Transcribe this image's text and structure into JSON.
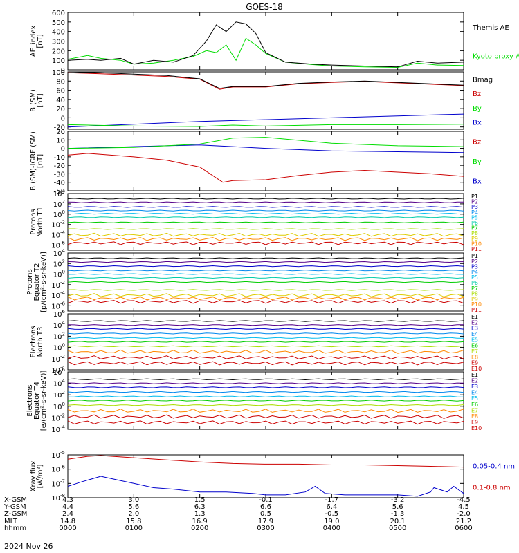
{
  "title": "GOES-18",
  "date_label": "2024 Nov 26",
  "footer": {
    "rows": [
      {
        "label": "X-GSM",
        "values": [
          "4.3",
          "3.0",
          "1.5",
          "-0.1",
          "-1.7",
          "-3.2",
          "-4.5"
        ]
      },
      {
        "label": "Y-GSM",
        "values": [
          "4.4",
          "5.6",
          "6.3",
          "6.6",
          "6.4",
          "5.6",
          "4.5"
        ]
      },
      {
        "label": "Z-GSM",
        "values": [
          "2.4",
          "2.0",
          "1.3",
          "0.5",
          "-0.5",
          "-1.3",
          "-2.0"
        ]
      },
      {
        "label": "MLT",
        "values": [
          "14.8",
          "15.8",
          "16.9",
          "17.9",
          "19.0",
          "20.1",
          "21.2"
        ]
      },
      {
        "label": "hhmm",
        "values": [
          "0000",
          "0100",
          "0200",
          "0300",
          "0400",
          "0500",
          "0600"
        ]
      }
    ]
  },
  "colors": {
    "black": "#000000",
    "green": "#00dd00",
    "blue": "#0000cc",
    "red": "#cc0000"
  },
  "chart_data": [
    {
      "type": "line",
      "ylabel": [
        "AE_index",
        "[nT]"
      ],
      "ylim": [
        0,
        600
      ],
      "yticks": [
        "0",
        "100",
        "200",
        "300",
        "400",
        "500",
        "600"
      ],
      "x_hours": [
        0,
        6
      ],
      "series": [
        {
          "name": "Kyoto proxy AE",
          "color": "#00dd00",
          "x": [
            0.0,
            0.3,
            0.5,
            0.8,
            1.0,
            1.3,
            1.6,
            1.9,
            2.1,
            2.25,
            2.4,
            2.55,
            2.7,
            2.85,
            3.0,
            3.3,
            3.7,
            4.0,
            4.5,
            5.0,
            5.3,
            5.6,
            6.0
          ],
          "y": [
            110,
            150,
            120,
            100,
            60,
            70,
            100,
            140,
            200,
            180,
            260,
            100,
            330,
            260,
            170,
            80,
            55,
            40,
            30,
            25,
            70,
            50,
            45
          ]
        },
        {
          "name": "Themis AE",
          "color": "#000000",
          "x": [
            0.0,
            0.3,
            0.5,
            0.8,
            1.0,
            1.3,
            1.6,
            1.9,
            2.1,
            2.25,
            2.4,
            2.55,
            2.7,
            2.85,
            3.0,
            3.3,
            3.7,
            4.0,
            4.5,
            5.0,
            5.3,
            5.6,
            6.0
          ],
          "y": [
            100,
            110,
            100,
            120,
            60,
            100,
            80,
            150,
            300,
            470,
            400,
            500,
            480,
            380,
            180,
            80,
            60,
            50,
            40,
            30,
            90,
            70,
            80
          ]
        }
      ],
      "legend_side": "right"
    },
    {
      "type": "line",
      "ylabel": [
        "B (SM)",
        "[nT]"
      ],
      "ylim": [
        -25,
        100
      ],
      "yticks": [
        "-20",
        "0",
        "20",
        "40",
        "60",
        "80",
        "100"
      ],
      "series": [
        {
          "name": "Bx",
          "color": "#0000cc",
          "x": [
            0,
            1,
            2,
            3,
            4,
            5,
            6
          ],
          "y": [
            -20,
            -14,
            -8,
            -4,
            0,
            4,
            8
          ]
        },
        {
          "name": "By",
          "color": "#00dd00",
          "x": [
            0,
            1,
            2,
            2.5,
            3,
            4,
            5,
            6
          ],
          "y": [
            -15,
            -18,
            -19,
            -16,
            -18,
            -15,
            -15,
            -14
          ]
        },
        {
          "name": "Bz",
          "color": "#cc0000",
          "x": [
            0,
            0.5,
            1,
            1.5,
            2,
            2.3,
            2.5,
            3,
            3.5,
            4,
            4.5,
            5,
            5.5,
            6
          ],
          "y": [
            98,
            96,
            93,
            90,
            84,
            62,
            67,
            67,
            74,
            77,
            79,
            76,
            73,
            70
          ]
        },
        {
          "name": "Bmag",
          "color": "#000000",
          "x": [
            0,
            0.5,
            1,
            1.5,
            2,
            2.3,
            2.5,
            3,
            3.5,
            4,
            4.5,
            5,
            5.5,
            6
          ],
          "y": [
            100,
            98,
            95,
            92,
            85,
            64,
            68,
            68,
            75,
            78,
            80,
            77,
            74,
            71
          ]
        }
      ],
      "legend_side": "right"
    },
    {
      "type": "line",
      "ylabel": [
        "B (SM)-IGRF (SM)",
        "[nT]"
      ],
      "ylim": [
        -50,
        20
      ],
      "yticks": [
        "-50",
        "-40",
        "-30",
        "-20",
        "-10",
        "0",
        "10",
        "20"
      ],
      "series": [
        {
          "name": "Bx",
          "color": "#0000cc",
          "x": [
            0,
            1,
            2,
            2.5,
            3,
            4,
            5,
            6
          ],
          "y": [
            0,
            2,
            4,
            2,
            0,
            -3,
            -4,
            -5
          ]
        },
        {
          "name": "By",
          "color": "#00dd00",
          "x": [
            0,
            1,
            2,
            2.5,
            3,
            4,
            5,
            6
          ],
          "y": [
            0,
            1,
            5,
            12,
            13,
            6,
            3,
            2
          ]
        },
        {
          "name": "Bz",
          "color": "#cc0000",
          "x": [
            0,
            0.3,
            1,
            1.5,
            2,
            2.35,
            2.5,
            3,
            3.5,
            4,
            4.5,
            5,
            5.5,
            6
          ],
          "y": [
            -8,
            -6,
            -10,
            -14,
            -22,
            -40,
            -38,
            -37,
            -32,
            -28,
            -26,
            -28,
            -30,
            -33
          ]
        }
      ],
      "legend_side": "right"
    },
    {
      "type": "line",
      "scale": "log",
      "ylabel": [
        "Protons",
        "North T1"
      ],
      "ylim_exp": [
        -7,
        4
      ],
      "ytick_exps": [
        -6,
        -4,
        -2,
        0,
        2,
        4
      ],
      "channels": [
        "P1",
        "P2",
        "P3",
        "P4",
        "P5",
        "P6",
        "P7",
        "P8",
        "P9",
        "P10",
        "P11"
      ],
      "channel_colors": [
        "#000000",
        "#550088",
        "#0000cc",
        "#0088ee",
        "#00bbee",
        "#00ccaa",
        "#00cc00",
        "#aadd00",
        "#ddcc00",
        "#ff8800",
        "#cc0000"
      ],
      "levels_exp": [
        3.0,
        2.3,
        1.4,
        0.7,
        0.1,
        -0.6,
        -1.6,
        -2.9,
        -4.0,
        -4.8,
        -5.6
      ]
    },
    {
      "type": "line",
      "scale": "log",
      "ylabel": [
        "Protons",
        "Equator T2",
        "[p/(cm²-s-sr-keV)]"
      ],
      "ylim_exp": [
        -7,
        4
      ],
      "ytick_exps": [
        -6,
        -4,
        -2,
        0,
        2,
        4
      ],
      "channels": [
        "P1",
        "P2",
        "P3",
        "P4",
        "P5",
        "P6",
        "P7",
        "P8",
        "P9",
        "P10",
        "P11"
      ],
      "channel_colors": [
        "#000000",
        "#550088",
        "#0000cc",
        "#0088ee",
        "#00bbee",
        "#00ccaa",
        "#00cc00",
        "#aadd00",
        "#ddcc00",
        "#ff8800",
        "#cc0000"
      ],
      "levels_exp": [
        3.0,
        2.3,
        1.5,
        0.7,
        0.0,
        -0.7,
        -1.5,
        -3.0,
        -4.0,
        -4.6,
        -5.2
      ]
    },
    {
      "type": "line",
      "scale": "log",
      "ylabel": [
        "Electrons",
        "North T3"
      ],
      "ylim_exp": [
        -4,
        6
      ],
      "ytick_exps": [
        -4,
        -2,
        0,
        2,
        4,
        6
      ],
      "channels": [
        "E1",
        "E2",
        "E3",
        "E4",
        "E5",
        "E6",
        "E7",
        "E8",
        "E9",
        "E10"
      ],
      "channel_colors": [
        "#000000",
        "#550088",
        "#0000cc",
        "#0088ee",
        "#00bbee",
        "#00cc00",
        "#aadd00",
        "#ff8800",
        "#cc0000",
        "#cc0000"
      ],
      "levels_exp": [
        4.7,
        4.0,
        3.3,
        2.5,
        1.7,
        1.0,
        0.2,
        -0.8,
        -1.8,
        -2.8
      ]
    },
    {
      "type": "line",
      "scale": "log",
      "ylabel": [
        "Electrons",
        "Equator T4",
        "[e/(cm²-s-sr-keV)]"
      ],
      "ylim_exp": [
        -4,
        6
      ],
      "ytick_exps": [
        -4,
        -2,
        0,
        2,
        4,
        6
      ],
      "channels": [
        "E1",
        "E2",
        "E3",
        "E4",
        "E5",
        "E6",
        "E7",
        "E8",
        "E9",
        "E10"
      ],
      "channel_colors": [
        "#000000",
        "#550088",
        "#0000cc",
        "#0088ee",
        "#00bbee",
        "#00cc00",
        "#aadd00",
        "#ff8800",
        "#cc0000",
        "#cc0000"
      ],
      "levels_exp": [
        4.7,
        4.0,
        3.3,
        2.5,
        1.7,
        1.0,
        0.2,
        -0.8,
        -1.8,
        -2.8
      ]
    },
    {
      "type": "line",
      "scale": "log",
      "ylabel": [
        "Xray flux",
        "[W/m²]"
      ],
      "ylim_exp": [
        -8,
        -5
      ],
      "ytick_exps": [
        -8,
        -7,
        -6,
        -5
      ],
      "series": [
        {
          "name": "0.1-0.8 nm",
          "color": "#cc0000",
          "x": [
            0,
            0.3,
            0.5,
            1.0,
            1.5,
            2.0,
            2.5,
            3.0,
            3.5,
            4.0,
            4.5,
            5.0,
            5.5,
            6.0
          ],
          "y_exp": [
            -5.3,
            -5.1,
            -5.05,
            -5.2,
            -5.35,
            -5.5,
            -5.6,
            -5.65,
            -5.65,
            -5.7,
            -5.7,
            -5.75,
            -5.8,
            -5.85
          ]
        },
        {
          "name": "0.05-0.4 nm",
          "color": "#0000cc",
          "x": [
            0,
            0.2,
            0.5,
            0.8,
            1.0,
            1.3,
            1.6,
            2.0,
            2.4,
            2.8,
            3.0,
            3.3,
            3.6,
            3.75,
            3.9,
            4.2,
            4.6,
            5.0,
            5.3,
            5.5,
            5.55,
            5.75,
            5.85,
            6.0
          ],
          "y_exp": [
            -7.2,
            -6.9,
            -6.5,
            -6.8,
            -7.0,
            -7.3,
            -7.4,
            -7.6,
            -7.6,
            -7.7,
            -7.8,
            -7.8,
            -7.6,
            -7.2,
            -7.7,
            -7.8,
            -7.8,
            -7.8,
            -7.9,
            -7.6,
            -7.3,
            -7.6,
            -7.2,
            -7.7
          ]
        }
      ],
      "legend_side": "right"
    }
  ]
}
